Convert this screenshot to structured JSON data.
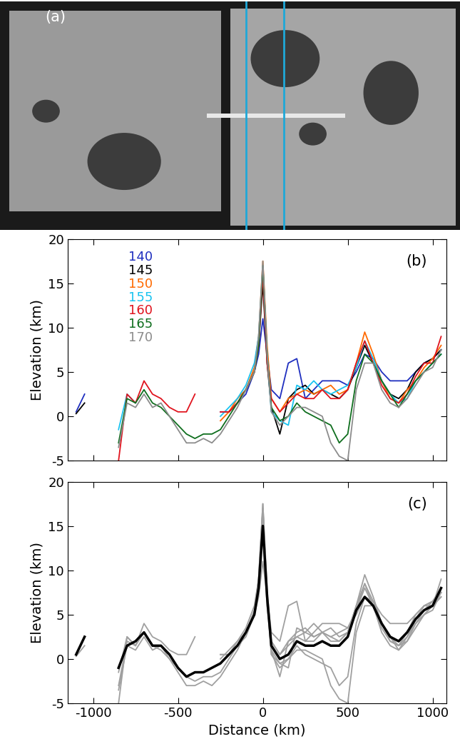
{
  "chart_data": [
    {
      "type": "image",
      "annotations": [
        "(a)"
      ]
    },
    {
      "type": "line",
      "ylabel": "Elevation (km)",
      "annotations": [
        "(b)"
      ],
      "legend": "upper left",
      "tick_labels": "y",
      "xlim": [
        -1150,
        1080
      ],
      "xticks": [
        -1000,
        -500,
        0,
        500,
        1000
      ],
      "ylim": [
        -5,
        20
      ],
      "yticks": [
        -5,
        0,
        5,
        10,
        15,
        20
      ],
      "x": [
        -1100,
        -1050,
        -1000,
        -950,
        -900,
        -850,
        -800,
        -750,
        -700,
        -650,
        -600,
        -550,
        -500,
        -450,
        -400,
        -350,
        -300,
        -250,
        -200,
        -150,
        -100,
        -50,
        -25,
        0,
        25,
        50,
        100,
        150,
        200,
        250,
        300,
        350,
        400,
        450,
        500,
        550,
        600,
        650,
        700,
        750,
        800,
        850,
        900,
        950,
        1000,
        1050
      ],
      "series": [
        {
          "name": "140",
          "color": "#1f2fbf",
          "values": [
            0.5,
            2.5,
            null,
            null,
            null,
            null,
            null,
            null,
            null,
            null,
            null,
            null,
            null,
            null,
            null,
            null,
            null,
            0.5,
            0.5,
            1.5,
            2.5,
            5,
            7,
            11,
            7,
            3,
            2,
            6,
            6.5,
            2,
            3,
            4,
            4,
            4,
            3.5,
            5,
            7,
            6.5,
            5,
            4,
            4,
            4,
            5,
            6,
            6.5,
            7.5
          ]
        },
        {
          "name": "145",
          "color": "#000000",
          "values": [
            0.3,
            1.5,
            null,
            null,
            null,
            null,
            null,
            null,
            null,
            null,
            null,
            null,
            null,
            null,
            null,
            null,
            null,
            null,
            0.5,
            1.5,
            3,
            5,
            8,
            15,
            6,
            1,
            -2,
            2,
            3,
            3.5,
            2.5,
            3,
            2.5,
            2,
            3,
            5.5,
            8,
            6,
            4,
            2.5,
            2,
            3,
            5,
            6,
            6.5,
            7.5
          ]
        },
        {
          "name": "150",
          "color": "#ff6a00",
          "values": [
            null,
            null,
            null,
            null,
            null,
            null,
            null,
            null,
            null,
            null,
            null,
            null,
            null,
            null,
            null,
            null,
            null,
            -0.5,
            0.5,
            2,
            3,
            5.5,
            9,
            17.5,
            8,
            2,
            0.5,
            2,
            2.5,
            3,
            2.5,
            3,
            3.5,
            2.5,
            3,
            6,
            9.5,
            7,
            4,
            2,
            1.5,
            3,
            4,
            5.5,
            6.5,
            8
          ]
        },
        {
          "name": "155",
          "color": "#19c3f0",
          "values": [
            null,
            null,
            null,
            null,
            null,
            -1.5,
            2.5,
            1.5,
            null,
            null,
            null,
            null,
            null,
            null,
            null,
            null,
            null,
            0,
            1,
            2,
            3.5,
            6,
            9,
            17,
            7,
            0.5,
            -0.5,
            -1,
            3.5,
            3,
            4,
            3,
            2.5,
            3,
            3.5,
            5.5,
            8.5,
            6.5,
            4,
            2.5,
            1.5,
            2,
            4,
            5,
            6,
            7
          ]
        },
        {
          "name": "160",
          "color": "#e0141e",
          "values": [
            null,
            null,
            null,
            null,
            null,
            -5,
            2.5,
            1.5,
            4,
            2.5,
            2,
            1,
            0.5,
            0.5,
            2.5,
            null,
            null,
            0.5,
            0.5,
            1.5,
            3,
            5,
            8,
            16,
            6,
            2,
            0.5,
            1.5,
            2.5,
            2,
            2,
            3,
            2,
            2,
            3,
            6,
            8.5,
            6,
            3.5,
            2,
            1.5,
            2.5,
            4.5,
            6,
            6,
            9
          ]
        },
        {
          "name": "165",
          "color": "#0f6e1e",
          "values": [
            null,
            null,
            null,
            null,
            null,
            -3,
            2,
            1.5,
            3,
            1.5,
            1,
            0,
            -1,
            -2,
            -2.5,
            -2,
            -2,
            -1.5,
            0,
            1.5,
            3,
            5,
            8,
            17,
            7,
            1,
            -0.5,
            0,
            1.5,
            0.5,
            0,
            -0.5,
            -1,
            -3,
            -2,
            4,
            7,
            6,
            4,
            2.5,
            1,
            2.5,
            4,
            5,
            6,
            7
          ]
        },
        {
          "name": "170",
          "color": "#8c8c8c",
          "values": [
            null,
            null,
            null,
            null,
            null,
            -3.5,
            1.5,
            1,
            2.5,
            1,
            1.5,
            0,
            -1.5,
            -3,
            -3,
            -2.5,
            -3,
            -2,
            -0.5,
            1,
            3,
            5,
            9,
            17.5,
            7,
            0.5,
            -1,
            0,
            1,
            1,
            0.5,
            0,
            -3,
            -4.5,
            -5,
            3,
            6,
            6,
            3,
            1.5,
            1,
            2,
            3.5,
            5,
            5.5,
            7.5
          ]
        }
      ]
    },
    {
      "type": "line",
      "xlabel": "Distance (km)",
      "ylabel": "Elevation (km)",
      "annotations": [
        "(c)"
      ],
      "xlim": [
        -1150,
        1080
      ],
      "xticks": [
        -1000,
        -500,
        0,
        500,
        1000
      ],
      "ylim": [
        -5,
        20
      ],
      "yticks": [
        -5,
        0,
        5,
        10,
        15,
        20
      ],
      "x": [
        -1100,
        -1050,
        -1000,
        -950,
        -900,
        -850,
        -800,
        -750,
        -700,
        -650,
        -600,
        -550,
        -500,
        -450,
        -400,
        -350,
        -300,
        -250,
        -200,
        -150,
        -100,
        -50,
        -25,
        0,
        25,
        50,
        100,
        150,
        200,
        250,
        300,
        350,
        400,
        450,
        500,
        550,
        600,
        650,
        700,
        750,
        800,
        850,
        900,
        950,
        1000,
        1050
      ],
      "series": [
        {
          "color": "#a0a0a0",
          "values": [
            0.5,
            2.5,
            null,
            null,
            null,
            null,
            null,
            null,
            null,
            null,
            null,
            null,
            null,
            null,
            null,
            null,
            null,
            0.5,
            0.5,
            1.5,
            2.5,
            5,
            7,
            11,
            7,
            3,
            2,
            6,
            6.5,
            2,
            3,
            4,
            4,
            4,
            3.5,
            5,
            7,
            6.5,
            5,
            4,
            4,
            4,
            5,
            6,
            6.5,
            7.5
          ]
        },
        {
          "color": "#a0a0a0",
          "values": [
            0.3,
            1.5,
            null,
            null,
            null,
            null,
            null,
            null,
            null,
            null,
            null,
            null,
            null,
            null,
            null,
            null,
            null,
            null,
            0.5,
            1.5,
            3,
            5,
            8,
            15,
            6,
            1,
            -2,
            2,
            3,
            3.5,
            2.5,
            3,
            2.5,
            2,
            3,
            5.5,
            8,
            6,
            4,
            2.5,
            2,
            3,
            5,
            6,
            6.5,
            7.5
          ]
        },
        {
          "color": "#a0a0a0",
          "values": [
            null,
            null,
            null,
            null,
            null,
            null,
            null,
            null,
            null,
            null,
            null,
            null,
            null,
            null,
            null,
            null,
            null,
            -0.5,
            0.5,
            2,
            3,
            5.5,
            9,
            17.5,
            8,
            2,
            0.5,
            2,
            2.5,
            3,
            2.5,
            3,
            3.5,
            2.5,
            3,
            6,
            9.5,
            7,
            4,
            2,
            1.5,
            3,
            4,
            5.5,
            6.5,
            8
          ]
        },
        {
          "color": "#a0a0a0",
          "values": [
            null,
            null,
            null,
            null,
            null,
            -1.5,
            2.5,
            1.5,
            null,
            null,
            null,
            null,
            null,
            null,
            null,
            null,
            null,
            0,
            1,
            2,
            3.5,
            6,
            9,
            17,
            7,
            0.5,
            -0.5,
            -1,
            3.5,
            3,
            4,
            3,
            2.5,
            3,
            3.5,
            5.5,
            8.5,
            6.5,
            4,
            2.5,
            1.5,
            2,
            4,
            5,
            6,
            7
          ]
        },
        {
          "color": "#a0a0a0",
          "values": [
            null,
            null,
            null,
            null,
            null,
            -5,
            2.5,
            1.5,
            4,
            2.5,
            2,
            1,
            0.5,
            0.5,
            2.5,
            null,
            null,
            0.5,
            0.5,
            1.5,
            3,
            5,
            8,
            16,
            6,
            2,
            0.5,
            1.5,
            2.5,
            2,
            2,
            3,
            2,
            2,
            3,
            6,
            8.5,
            6,
            3.5,
            2,
            1.5,
            2.5,
            4.5,
            6,
            6,
            9
          ]
        },
        {
          "color": "#a0a0a0",
          "values": [
            null,
            null,
            null,
            null,
            null,
            -3,
            2,
            1.5,
            3,
            1.5,
            1,
            0,
            -1,
            -2,
            -2.5,
            -2,
            -2,
            -1.5,
            0,
            1.5,
            3,
            5,
            8,
            17,
            7,
            1,
            -0.5,
            0,
            1.5,
            0.5,
            0,
            -0.5,
            -1,
            -3,
            -2,
            4,
            7,
            6,
            4,
            2.5,
            1,
            2.5,
            4,
            5,
            6,
            7
          ]
        },
        {
          "color": "#a0a0a0",
          "values": [
            null,
            null,
            null,
            null,
            null,
            -3.5,
            1.5,
            1,
            2.5,
            1,
            1.5,
            0,
            -1.5,
            -3,
            -3,
            -2.5,
            -3,
            -2,
            -0.5,
            1,
            3,
            5,
            9,
            17.5,
            7,
            0.5,
            -1,
            0,
            1,
            1,
            0.5,
            0,
            -3,
            -4.5,
            -5,
            3,
            6,
            6,
            3,
            1.5,
            1,
            2,
            3.5,
            5,
            5.5,
            7.5
          ]
        },
        {
          "color": "#000000",
          "values": [
            0.5,
            2.5,
            null,
            null,
            null,
            -1,
            1.5,
            2,
            3,
            1.5,
            1.5,
            0.5,
            -1,
            -2,
            -1.5,
            -1.5,
            -1,
            -0.5,
            0.5,
            1.5,
            3,
            5,
            8,
            15,
            7,
            1.5,
            0,
            0.5,
            2,
            1.5,
            1.5,
            2,
            1.5,
            1.5,
            2.5,
            5.5,
            7,
            6,
            4,
            2.5,
            2,
            3,
            4.5,
            5.5,
            6,
            8
          ]
        }
      ]
    }
  ]
}
